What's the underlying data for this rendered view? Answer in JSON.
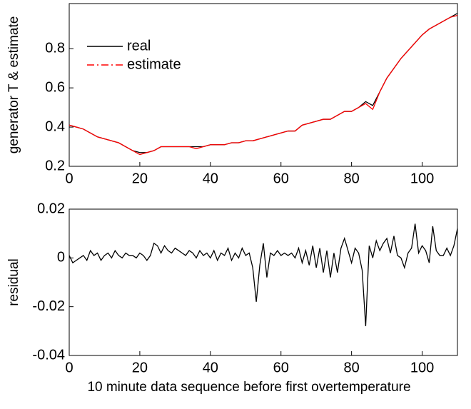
{
  "chart_data": [
    {
      "type": "line",
      "ylabel": "generator T & estimate",
      "x": [
        0,
        2,
        4,
        6,
        8,
        10,
        12,
        14,
        16,
        18,
        20,
        22,
        24,
        26,
        28,
        30,
        32,
        34,
        36,
        38,
        40,
        42,
        44,
        46,
        48,
        50,
        52,
        54,
        56,
        58,
        60,
        62,
        64,
        66,
        68,
        70,
        72,
        74,
        76,
        78,
        80,
        82,
        84,
        86,
        88,
        90,
        92,
        94,
        96,
        98,
        100,
        102,
        104,
        106,
        108,
        110
      ],
      "series": [
        {
          "name": "real",
          "color": "#000000",
          "linestyle": "solid",
          "values": [
            0.41,
            0.4,
            0.39,
            0.37,
            0.35,
            0.34,
            0.33,
            0.32,
            0.3,
            0.28,
            0.27,
            0.27,
            0.28,
            0.3,
            0.3,
            0.3,
            0.3,
            0.3,
            0.3,
            0.3,
            0.31,
            0.31,
            0.31,
            0.32,
            0.32,
            0.33,
            0.33,
            0.34,
            0.35,
            0.36,
            0.37,
            0.38,
            0.38,
            0.41,
            0.42,
            0.43,
            0.44,
            0.44,
            0.46,
            0.48,
            0.48,
            0.5,
            0.53,
            0.51,
            0.58,
            0.65,
            0.7,
            0.75,
            0.79,
            0.83,
            0.87,
            0.9,
            0.92,
            0.94,
            0.96,
            0.98
          ]
        },
        {
          "name": "estimate",
          "color": "#ff0000",
          "linestyle": "dashdot",
          "values": [
            0.41,
            0.4,
            0.39,
            0.37,
            0.35,
            0.34,
            0.33,
            0.32,
            0.3,
            0.28,
            0.26,
            0.27,
            0.28,
            0.3,
            0.3,
            0.3,
            0.3,
            0.3,
            0.29,
            0.3,
            0.31,
            0.31,
            0.31,
            0.32,
            0.32,
            0.33,
            0.33,
            0.34,
            0.35,
            0.36,
            0.37,
            0.38,
            0.38,
            0.41,
            0.42,
            0.43,
            0.44,
            0.44,
            0.46,
            0.48,
            0.48,
            0.5,
            0.52,
            0.49,
            0.58,
            0.65,
            0.7,
            0.75,
            0.79,
            0.83,
            0.87,
            0.9,
            0.92,
            0.94,
            0.96,
            0.97
          ]
        }
      ],
      "xlim": [
        0,
        110
      ],
      "xticks": [
        0,
        20,
        40,
        60,
        80,
        100
      ],
      "ylim": [
        0.2,
        1.03
      ],
      "yticks": [
        0.2,
        0.4,
        0.6,
        0.8
      ],
      "grid": false,
      "legend": "upper left"
    },
    {
      "type": "line",
      "ylabel": "residual",
      "xlabel": "10 minute data sequence before first overtemperature",
      "x": [
        0,
        1,
        2,
        3,
        4,
        5,
        6,
        7,
        8,
        9,
        10,
        11,
        12,
        13,
        14,
        15,
        16,
        17,
        18,
        19,
        20,
        21,
        22,
        23,
        24,
        25,
        26,
        27,
        28,
        29,
        30,
        31,
        32,
        33,
        34,
        35,
        36,
        37,
        38,
        39,
        40,
        41,
        42,
        43,
        44,
        45,
        46,
        47,
        48,
        49,
        50,
        51,
        52,
        53,
        54,
        55,
        56,
        57,
        58,
        59,
        60,
        61,
        62,
        63,
        64,
        65,
        66,
        67,
        68,
        69,
        70,
        71,
        72,
        73,
        74,
        75,
        76,
        77,
        78,
        79,
        80,
        81,
        82,
        83,
        84,
        85,
        86,
        87,
        88,
        89,
        90,
        91,
        92,
        93,
        94,
        95,
        96,
        97,
        98,
        99,
        100,
        101,
        102,
        103,
        104,
        105,
        106,
        107,
        108,
        109,
        110
      ],
      "color": "#000000",
      "values": [
        0.001,
        -0.002,
        -0.001,
        0.0,
        0.001,
        -0.001,
        0.003,
        0.001,
        0.002,
        -0.001,
        0.001,
        0.002,
        0.0,
        0.003,
        0.001,
        0.0,
        0.002,
        0.001,
        0.001,
        0.0,
        0.002,
        0.001,
        -0.001,
        0.001,
        0.006,
        0.005,
        0.002,
        0.005,
        0.003,
        0.002,
        0.004,
        0.003,
        0.002,
        0.001,
        0.003,
        0.002,
        0.0,
        0.003,
        0.001,
        0.002,
        0.0,
        0.003,
        -0.001,
        0.002,
        0.001,
        0.004,
        -0.001,
        0.002,
        0.0,
        0.004,
        0.001,
        0.002,
        -0.004,
        -0.018,
        -0.003,
        0.006,
        -0.008,
        0.002,
        0.001,
        0.003,
        0.001,
        0.002,
        0.001,
        0.002,
        0.0,
        0.004,
        -0.002,
        0.003,
        -0.003,
        0.005,
        -0.004,
        0.004,
        -0.006,
        0.003,
        -0.008,
        0.002,
        -0.006,
        0.004,
        0.008,
        0.003,
        -0.002,
        0.004,
        0.002,
        -0.005,
        -0.028,
        0.005,
        0.0,
        0.007,
        0.003,
        0.006,
        0.008,
        0.002,
        0.009,
        0.001,
        0.0,
        -0.004,
        0.002,
        0.004,
        0.014,
        0.002,
        0.005,
        0.003,
        -0.002,
        0.013,
        0.003,
        0.001,
        0.001,
        0.004,
        0.001,
        0.005,
        0.012
      ],
      "xlim": [
        0,
        110
      ],
      "xticks": [
        0,
        20,
        40,
        60,
        80,
        100
      ],
      "ylim": [
        -0.04,
        0.02
      ],
      "yticks": [
        -0.04,
        -0.02,
        0,
        0.02
      ],
      "grid": false
    }
  ]
}
